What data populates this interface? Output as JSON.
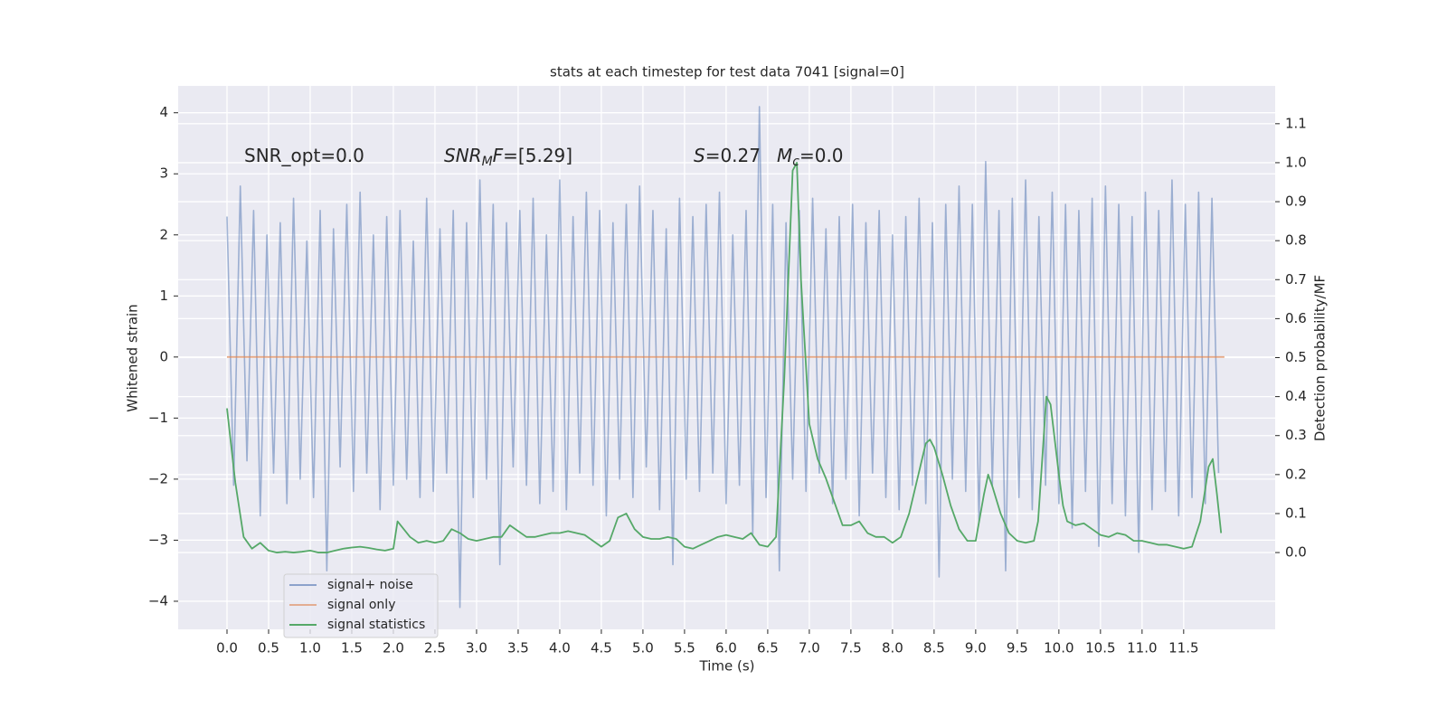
{
  "chart_data": {
    "type": "line",
    "title": "stats at each timestep for test data 7041 [signal=0]",
    "xlabel": "Time (s)",
    "ylabel": "Whitened strain",
    "y2label": "Detection probability/MF",
    "annotations": [
      [
        {
          "text": "SNR_opt=0.0"
        }
      ],
      [
        {
          "text": "SNR",
          "italic": true
        },
        {
          "text": "M",
          "italic": true,
          "sub": true
        },
        {
          "text": "F",
          "italic": true
        },
        {
          "text": "=[5.29]"
        }
      ],
      [
        {
          "text": "S",
          "italic": true
        },
        {
          "text": "=0.27"
        }
      ],
      [
        {
          "text": "M",
          "italic": true
        },
        {
          "text": "c",
          "italic": true,
          "sub": true
        },
        {
          "text": "=0.0"
        }
      ]
    ],
    "series": [
      {
        "name": "signal+ noise",
        "color": "#4c72b0",
        "axis": "y",
        "x": [
          0,
          0.08,
          0.16,
          0.24,
          0.32,
          0.4,
          0.48,
          0.56,
          0.64,
          0.72,
          0.8,
          0.88,
          0.96,
          1.04,
          1.12,
          1.2,
          1.28,
          1.36,
          1.44,
          1.52,
          1.6,
          1.68,
          1.76,
          1.84,
          1.92,
          2,
          2.08,
          2.16,
          2.24,
          2.32,
          2.4,
          2.48,
          2.56,
          2.64,
          2.72,
          2.8,
          2.88,
          2.96,
          3.04,
          3.12,
          3.2,
          3.28,
          3.36,
          3.44,
          3.52,
          3.6,
          3.68,
          3.76,
          3.84,
          3.92,
          4,
          4.08,
          4.16,
          4.24,
          4.32,
          4.4,
          4.48,
          4.56,
          4.64,
          4.72,
          4.8,
          4.88,
          4.96,
          5.04,
          5.12,
          5.2,
          5.28,
          5.36,
          5.44,
          5.52,
          5.6,
          5.68,
          5.76,
          5.84,
          5.92,
          6,
          6.08,
          6.16,
          6.24,
          6.32,
          6.4,
          6.48,
          6.56,
          6.64,
          6.72,
          6.8,
          6.88,
          6.96,
          7.04,
          7.12,
          7.2,
          7.28,
          7.36,
          7.44,
          7.52,
          7.6,
          7.68,
          7.76,
          7.84,
          7.92,
          8,
          8.08,
          8.16,
          8.24,
          8.32,
          8.4,
          8.48,
          8.56,
          8.64,
          8.72,
          8.8,
          8.88,
          8.96,
          9.04,
          9.12,
          9.2,
          9.28,
          9.36,
          9.44,
          9.52,
          9.6,
          9.68,
          9.76,
          9.84,
          9.92,
          10,
          10.08,
          10.16,
          10.24,
          10.32,
          10.4,
          10.48,
          10.56,
          10.64,
          10.72,
          10.8,
          10.88,
          10.96,
          11.04,
          11.12,
          11.2,
          11.28,
          11.36,
          11.44,
          11.52,
          11.6,
          11.68,
          11.76,
          11.84,
          11.92
        ],
        "values": [
          2.3,
          -2.1,
          2.8,
          -1.7,
          2.4,
          -2.6,
          2.0,
          -1.9,
          2.2,
          -2.4,
          2.6,
          -2.0,
          1.9,
          -2.3,
          2.4,
          -3.5,
          2.1,
          -1.8,
          2.5,
          -2.2,
          2.7,
          -1.9,
          2.0,
          -2.5,
          2.3,
          -2.1,
          2.4,
          -2.0,
          1.9,
          -2.3,
          2.6,
          -2.2,
          2.1,
          -1.9,
          2.4,
          -4.1,
          2.2,
          -2.3,
          2.9,
          -2.0,
          2.5,
          -3.4,
          2.2,
          -1.8,
          2.4,
          -2.1,
          2.6,
          -2.4,
          2.0,
          -2.2,
          2.9,
          -2.5,
          2.3,
          -1.9,
          2.7,
          -2.1,
          2.4,
          -2.6,
          2.2,
          -2.0,
          2.5,
          -2.3,
          2.8,
          -1.8,
          2.4,
          -2.5,
          2.1,
          -3.4,
          2.6,
          -2.0,
          2.3,
          -2.2,
          2.5,
          -1.9,
          2.7,
          -2.4,
          2.0,
          -2.1,
          2.4,
          -2.9,
          4.1,
          -2.3,
          2.5,
          -3.5,
          2.2,
          -2.0,
          2.4,
          -2.2,
          2.6,
          -1.9,
          2.1,
          -2.4,
          2.3,
          -2.0,
          2.5,
          -2.6,
          2.2,
          -1.9,
          2.4,
          -2.3,
          2.0,
          -2.5,
          2.3,
          -2.1,
          2.6,
          -2.4,
          2.2,
          -3.6,
          2.5,
          -2.0,
          2.8,
          -2.2,
          2.5,
          -2.7,
          3.2,
          -2.1,
          2.4,
          -3.5,
          2.6,
          -2.3,
          2.9,
          -2.5,
          2.3,
          -2.1,
          2.7,
          -2.4,
          2.5,
          -2.8,
          2.4,
          -2.2,
          2.6,
          -3.1,
          2.8,
          -2.4,
          2.5,
          -2.6,
          2.3,
          -3.2,
          2.7,
          -2.5,
          2.4,
          -2.2,
          2.9,
          -2.6,
          2.5,
          -2.3,
          2.7,
          -2.4,
          2.6,
          -1.9
        ]
      },
      {
        "name": "signal only",
        "color": "#dd8452",
        "axis": "y",
        "x": [
          0,
          11.99
        ],
        "values": [
          0,
          0
        ]
      },
      {
        "name": "signal statistics",
        "color": "#55a868",
        "axis": "y2",
        "x": [
          0,
          0.1,
          0.2,
          0.3,
          0.4,
          0.5,
          0.6,
          0.7,
          0.8,
          0.9,
          1,
          1.1,
          1.2,
          1.3,
          1.4,
          1.5,
          1.6,
          1.7,
          1.8,
          1.9,
          2,
          2.05,
          2.2,
          2.3,
          2.4,
          2.5,
          2.6,
          2.7,
          2.8,
          2.9,
          3,
          3.1,
          3.2,
          3.3,
          3.4,
          3.5,
          3.6,
          3.7,
          3.8,
          3.9,
          4,
          4.1,
          4.2,
          4.3,
          4.4,
          4.5,
          4.6,
          4.7,
          4.8,
          4.9,
          5,
          5.1,
          5.2,
          5.3,
          5.4,
          5.5,
          5.6,
          5.7,
          5.8,
          5.9,
          6,
          6.1,
          6.2,
          6.3,
          6.4,
          6.5,
          6.6,
          6.7,
          6.8,
          6.85,
          6.9,
          7,
          7.1,
          7.2,
          7.3,
          7.4,
          7.5,
          7.6,
          7.7,
          7.8,
          7.9,
          8,
          8.1,
          8.2,
          8.3,
          8.4,
          8.45,
          8.5,
          8.6,
          8.7,
          8.8,
          8.9,
          9,
          9.1,
          9.15,
          9.2,
          9.3,
          9.4,
          9.5,
          9.6,
          9.7,
          9.75,
          9.85,
          9.9,
          10,
          10.05,
          10.1,
          10.2,
          10.3,
          10.4,
          10.5,
          10.6,
          10.7,
          10.8,
          10.9,
          11,
          11.1,
          11.2,
          11.3,
          11.4,
          11.5,
          11.6,
          11.7,
          11.8,
          11.85,
          11.9,
          11.95
        ],
        "values": [
          0.37,
          0.18,
          0.04,
          0.01,
          0.025,
          0.005,
          0.0,
          0.002,
          0.0,
          0.002,
          0.005,
          0.0,
          0.0,
          0.005,
          0.01,
          0.013,
          0.015,
          0.012,
          0.008,
          0.005,
          0.01,
          0.08,
          0.04,
          0.025,
          0.03,
          0.025,
          0.03,
          0.06,
          0.05,
          0.035,
          0.03,
          0.035,
          0.04,
          0.04,
          0.07,
          0.055,
          0.04,
          0.04,
          0.045,
          0.05,
          0.05,
          0.055,
          0.05,
          0.045,
          0.03,
          0.015,
          0.03,
          0.09,
          0.1,
          0.06,
          0.04,
          0.035,
          0.035,
          0.04,
          0.035,
          0.015,
          0.01,
          0.02,
          0.03,
          0.04,
          0.045,
          0.04,
          0.035,
          0.05,
          0.02,
          0.015,
          0.04,
          0.45,
          0.98,
          1.0,
          0.7,
          0.33,
          0.24,
          0.19,
          0.13,
          0.07,
          0.07,
          0.08,
          0.05,
          0.04,
          0.04,
          0.025,
          0.04,
          0.1,
          0.19,
          0.28,
          0.29,
          0.27,
          0.2,
          0.12,
          0.06,
          0.03,
          0.03,
          0.15,
          0.2,
          0.17,
          0.1,
          0.05,
          0.03,
          0.025,
          0.03,
          0.08,
          0.4,
          0.38,
          0.2,
          0.12,
          0.08,
          0.07,
          0.075,
          0.06,
          0.045,
          0.04,
          0.05,
          0.045,
          0.03,
          0.03,
          0.025,
          0.02,
          0.02,
          0.015,
          0.01,
          0.015,
          0.08,
          0.22,
          0.24,
          0.15,
          0.05
        ]
      }
    ],
    "xlim": [
      -0.587,
      12.6
    ],
    "ylim": [
      -4.46,
      4.44
    ],
    "y2lim": [
      -0.197,
      1.197
    ],
    "xticks": [
      {
        "value": 0,
        "label": "0.0"
      },
      0.5,
      {
        "value": 1,
        "label": "1.0"
      },
      1.5,
      {
        "value": 2,
        "label": "2.0"
      },
      2.5,
      {
        "value": 3,
        "label": "3.0"
      },
      3.5,
      {
        "value": 4,
        "label": "4.0"
      },
      4.5,
      {
        "value": 5,
        "label": "5.0"
      },
      5.5,
      {
        "value": 6,
        "label": "6.0"
      },
      6.5,
      {
        "value": 7,
        "label": "7.0"
      },
      7.5,
      {
        "value": 8,
        "label": "8.0"
      },
      8.5,
      {
        "value": 9,
        "label": "9.0"
      },
      9.5,
      {
        "value": 10,
        "label": "10.0"
      },
      10.5,
      {
        "value": 11,
        "label": "11.0"
      },
      11.5
    ],
    "yticks": [
      {
        "value": -4,
        "label": "−4"
      },
      {
        "value": -3,
        "label": "−3"
      },
      {
        "value": -2,
        "label": "−2"
      },
      {
        "value": -1,
        "label": "−1"
      },
      0,
      1,
      2,
      3,
      4
    ],
    "y2ticks": [
      {
        "value": 0,
        "label": "0.0"
      },
      0.1,
      0.2,
      0.3,
      0.4,
      0.5,
      0.6,
      0.7,
      0.8,
      0.9,
      {
        "value": 1,
        "label": "1.0"
      },
      1.1
    ],
    "grid": true,
    "legend": "lower left"
  }
}
